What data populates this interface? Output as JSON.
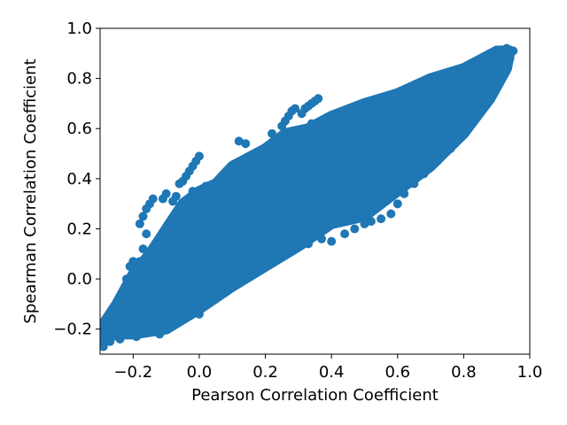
{
  "chart_data": {
    "type": "scatter",
    "xlabel": "Pearson Correlation Coefficient",
    "ylabel": "Spearman Correlation Coefficient",
    "xlim": [
      -0.3,
      1.0
    ],
    "ylim": [
      -0.3,
      1.0
    ],
    "grid": false,
    "color": "#1f77b4",
    "xticks": [
      -0.2,
      0.0,
      0.2,
      0.4,
      0.6,
      0.8,
      1.0
    ],
    "yticks": [
      -0.2,
      0.0,
      0.2,
      0.4,
      0.6,
      0.8,
      1.0
    ],
    "xtick_labels": [
      "−0.2",
      "0.0",
      "0.2",
      "0.4",
      "0.6",
      "0.8",
      "1.0"
    ],
    "ytick_labels": [
      "−0.2",
      "0.0",
      "0.2",
      "0.4",
      "0.6",
      "0.8",
      "1.0"
    ],
    "dense_region": [
      [
        -0.29,
        -0.24
      ],
      [
        -0.25,
        -0.22
      ],
      [
        -0.2,
        -0.22
      ],
      [
        -0.1,
        -0.2
      ],
      [
        0.0,
        -0.12
      ],
      [
        0.1,
        -0.03
      ],
      [
        0.2,
        0.05
      ],
      [
        0.3,
        0.13
      ],
      [
        0.4,
        0.22
      ],
      [
        0.5,
        0.25
      ],
      [
        0.6,
        0.35
      ],
      [
        0.7,
        0.45
      ],
      [
        0.8,
        0.58
      ],
      [
        0.88,
        0.72
      ],
      [
        0.93,
        0.84
      ],
      [
        0.94,
        0.91
      ],
      [
        0.9,
        0.91
      ],
      [
        0.8,
        0.84
      ],
      [
        0.7,
        0.8
      ],
      [
        0.6,
        0.74
      ],
      [
        0.5,
        0.7
      ],
      [
        0.4,
        0.65
      ],
      [
        0.33,
        0.6
      ],
      [
        0.26,
        0.58
      ],
      [
        0.2,
        0.52
      ],
      [
        0.1,
        0.45
      ],
      [
        0.05,
        0.38
      ],
      [
        0.0,
        0.35
      ],
      [
        -0.05,
        0.3
      ],
      [
        -0.1,
        0.2
      ],
      [
        -0.15,
        0.1
      ],
      [
        -0.2,
        0.02
      ],
      [
        -0.25,
        -0.1
      ],
      [
        -0.29,
        -0.18
      ]
    ],
    "points": [
      [
        -0.14,
        0.32
      ],
      [
        -0.15,
        0.3
      ],
      [
        -0.16,
        0.28
      ],
      [
        -0.17,
        0.25
      ],
      [
        -0.18,
        0.22
      ],
      [
        -0.16,
        0.18
      ],
      [
        -0.17,
        0.12
      ],
      [
        -0.18,
        0.07
      ],
      [
        -0.2,
        0.07
      ],
      [
        -0.21,
        0.05
      ],
      [
        -0.22,
        0.0
      ],
      [
        -0.23,
        -0.05
      ],
      [
        -0.21,
        -0.07
      ],
      [
        -0.2,
        -0.08
      ],
      [
        -0.22,
        -0.12
      ],
      [
        -0.24,
        -0.15
      ],
      [
        -0.26,
        -0.17
      ],
      [
        -0.27,
        -0.19
      ],
      [
        -0.28,
        -0.21
      ],
      [
        -0.29,
        -0.23
      ],
      [
        -0.29,
        -0.27
      ],
      [
        -0.27,
        -0.25
      ],
      [
        -0.24,
        -0.24
      ],
      [
        -0.19,
        -0.23
      ],
      [
        -0.12,
        -0.22
      ],
      [
        -0.11,
        0.32
      ],
      [
        -0.1,
        0.34
      ],
      [
        -0.08,
        0.31
      ],
      [
        -0.07,
        0.33
      ],
      [
        -0.06,
        0.38
      ],
      [
        -0.05,
        0.39
      ],
      [
        -0.04,
        0.41
      ],
      [
        -0.03,
        0.43
      ],
      [
        -0.02,
        0.45
      ],
      [
        -0.01,
        0.47
      ],
      [
        0.0,
        0.49
      ],
      [
        -0.02,
        0.35
      ],
      [
        0.02,
        0.37
      ],
      [
        0.12,
        0.55
      ],
      [
        0.14,
        0.54
      ],
      [
        0.22,
        0.58
      ],
      [
        0.25,
        0.61
      ],
      [
        0.26,
        0.63
      ],
      [
        0.27,
        0.65
      ],
      [
        0.28,
        0.67
      ],
      [
        0.29,
        0.68
      ],
      [
        0.31,
        0.66
      ],
      [
        0.32,
        0.68
      ],
      [
        0.33,
        0.69
      ],
      [
        0.34,
        0.7
      ],
      [
        0.35,
        0.71
      ],
      [
        0.36,
        0.72
      ],
      [
        0.34,
        0.62
      ],
      [
        0.4,
        0.63
      ],
      [
        0.45,
        0.64
      ],
      [
        0.26,
        0.18
      ],
      [
        0.29,
        0.15
      ],
      [
        0.33,
        0.14
      ],
      [
        0.37,
        0.16
      ],
      [
        0.4,
        0.15
      ],
      [
        0.44,
        0.18
      ],
      [
        0.47,
        0.2
      ],
      [
        0.5,
        0.22
      ],
      [
        0.52,
        0.23
      ],
      [
        0.55,
        0.24
      ],
      [
        0.58,
        0.26
      ],
      [
        0.6,
        0.3
      ],
      [
        0.62,
        0.34
      ],
      [
        0.65,
        0.38
      ],
      [
        0.68,
        0.42
      ],
      [
        0.72,
        0.47
      ],
      [
        0.76,
        0.52
      ],
      [
        0.78,
        0.56
      ],
      [
        0.79,
        0.6
      ],
      [
        0.8,
        0.63
      ],
      [
        0.82,
        0.66
      ],
      [
        0.85,
        0.72
      ],
      [
        0.88,
        0.77
      ],
      [
        0.9,
        0.8
      ],
      [
        0.92,
        0.84
      ],
      [
        0.94,
        0.88
      ],
      [
        0.95,
        0.91
      ],
      [
        0.93,
        0.92
      ],
      [
        0.91,
        0.9
      ],
      [
        0.89,
        0.87
      ],
      [
        0.87,
        0.84
      ],
      [
        0.84,
        0.8
      ],
      [
        0.83,
        0.77
      ],
      [
        0.59,
        0.71
      ],
      [
        0.62,
        0.72
      ],
      [
        0.64,
        0.73
      ],
      [
        0.67,
        0.74
      ],
      [
        0.7,
        0.76
      ],
      [
        0.72,
        0.78
      ],
      [
        0.75,
        0.8
      ],
      [
        0.78,
        0.82
      ],
      [
        0.8,
        0.83
      ],
      [
        0.05,
        -0.08
      ],
      [
        0.08,
        -0.05
      ],
      [
        0.12,
        0.0
      ],
      [
        0.15,
        0.02
      ],
      [
        0.18,
        0.04
      ],
      [
        0.0,
        -0.14
      ],
      [
        -0.05,
        -0.14
      ],
      [
        -0.1,
        -0.15
      ],
      [
        -0.16,
        -0.2
      ],
      [
        -0.08,
        -0.02
      ],
      [
        -0.12,
        0.05
      ],
      [
        -0.14,
        -0.05
      ],
      [
        -0.19,
        -0.14
      ],
      [
        -0.25,
        -0.19
      ],
      [
        -0.03,
        -0.1
      ]
    ]
  }
}
